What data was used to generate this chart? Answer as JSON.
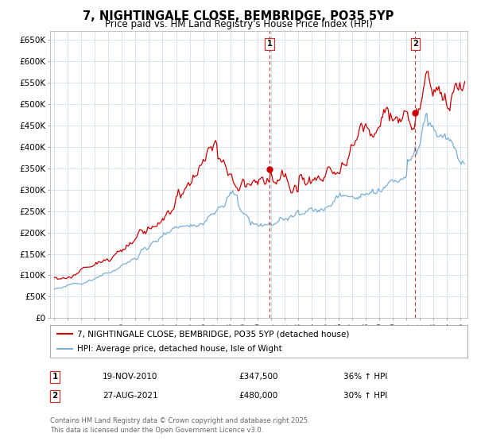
{
  "title": "7, NIGHTINGALE CLOSE, BEMBRIDGE, PO35 5YP",
  "subtitle": "Price paid vs. HM Land Registry's House Price Index (HPI)",
  "ylim": [
    0,
    670000
  ],
  "xlim_start": 1994.7,
  "xlim_end": 2025.5,
  "yticks": [
    0,
    50000,
    100000,
    150000,
    200000,
    250000,
    300000,
    350000,
    400000,
    450000,
    500000,
    550000,
    600000,
    650000
  ],
  "ytick_labels": [
    "£0",
    "£50K",
    "£100K",
    "£150K",
    "£200K",
    "£250K",
    "£300K",
    "£350K",
    "£400K",
    "£450K",
    "£500K",
    "£550K",
    "£600K",
    "£650K"
  ],
  "xticks": [
    1995,
    1996,
    1997,
    1998,
    1999,
    2000,
    2001,
    2002,
    2003,
    2004,
    2005,
    2006,
    2007,
    2008,
    2009,
    2010,
    2011,
    2012,
    2013,
    2014,
    2015,
    2016,
    2017,
    2018,
    2019,
    2020,
    2021,
    2022,
    2023,
    2024,
    2025
  ],
  "property_color": "#cc0000",
  "hpi_color": "#7aafd4",
  "marker_color": "#cc0000",
  "vline_color": "#cc3333",
  "sale1_x": 2010.89,
  "sale1_y": 347500,
  "sale2_x": 2021.65,
  "sale2_y": 480000,
  "legend_property": "7, NIGHTINGALE CLOSE, BEMBRIDGE, PO35 5YP (detached house)",
  "legend_hpi": "HPI: Average price, detached house, Isle of Wight",
  "annotation1_date": "19-NOV-2010",
  "annotation1_price": "£347,500",
  "annotation1_hpi": "36% ↑ HPI",
  "annotation2_date": "27-AUG-2021",
  "annotation2_price": "£480,000",
  "annotation2_hpi": "30% ↑ HPI",
  "footer": "Contains HM Land Registry data © Crown copyright and database right 2025.\nThis data is licensed under the Open Government Licence v3.0.",
  "bg_color": "#ffffff",
  "grid_color": "#c8d8e8",
  "title_fontsize": 10.5,
  "subtitle_fontsize": 8.5,
  "tick_fontsize": 7.5
}
